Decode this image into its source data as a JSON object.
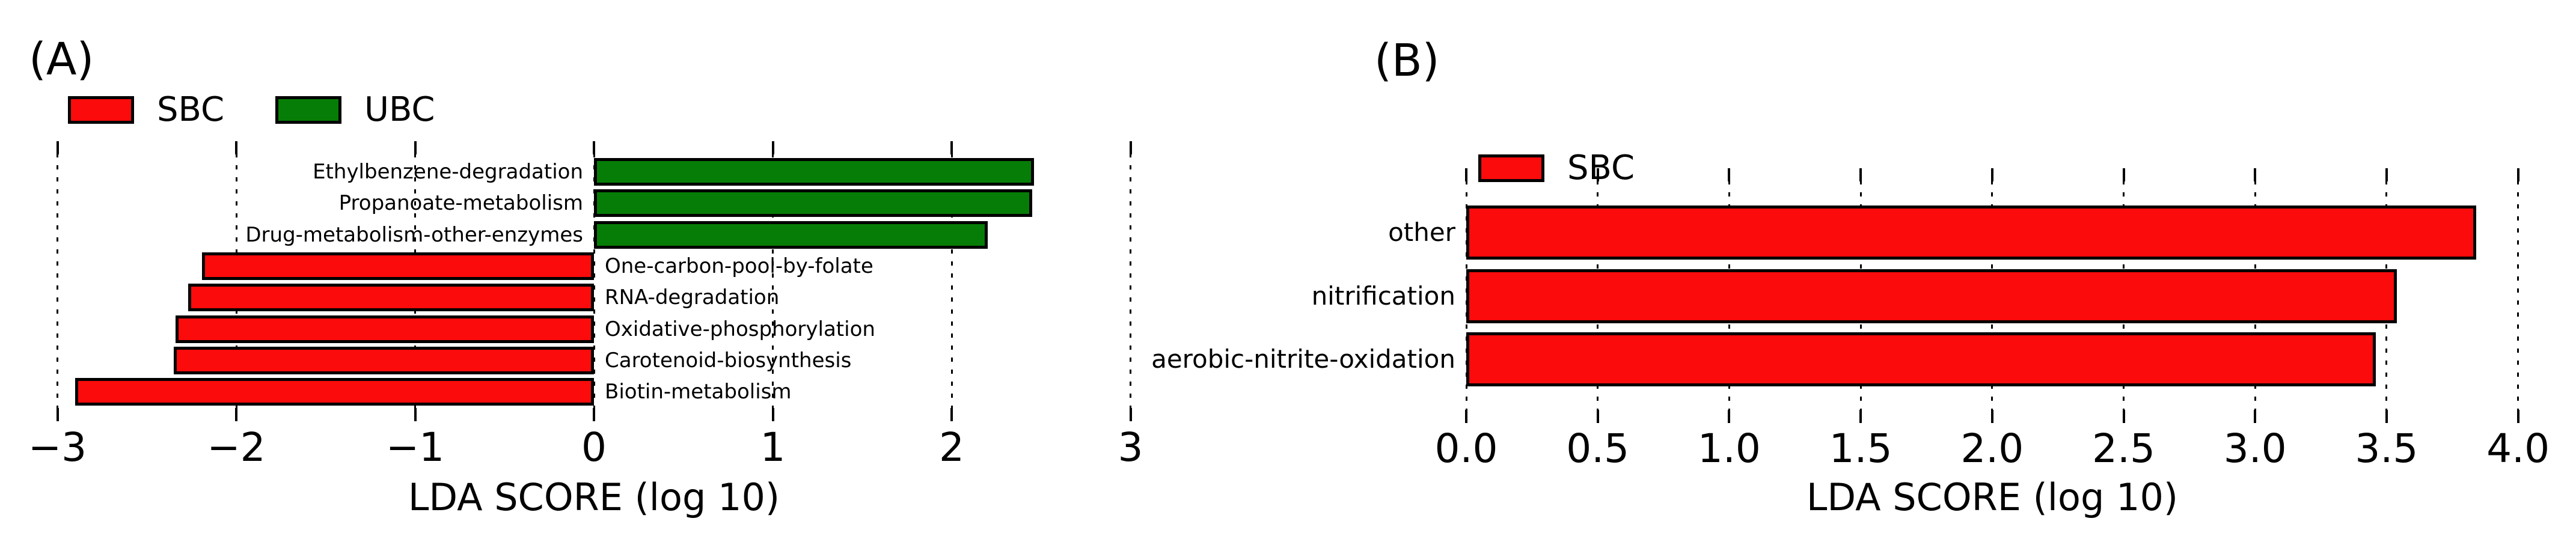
{
  "background_color": "#ffffff",
  "chart_data": [
    {
      "id": "A",
      "type": "bar",
      "orientation": "horizontal",
      "panel_label": "(A)",
      "xlabel": "LDA SCORE (log 10)",
      "xlim": [
        -3,
        3
      ],
      "xticks": [
        -3,
        -2,
        -1,
        0,
        1,
        2,
        3
      ],
      "xtick_labels": [
        "−3",
        "−2",
        "−1",
        "0",
        "1",
        "2",
        "3"
      ],
      "grid": "dotted-vertical",
      "legend_position": "top-left",
      "legend": [
        {
          "label": "SBC",
          "color": "#fb0b0b"
        },
        {
          "label": "UBC",
          "color": "#067d06"
        }
      ],
      "bars": [
        {
          "category": "Ethylbenzene-degradation",
          "group": "UBC",
          "value": 2.46,
          "label_side": "left"
        },
        {
          "category": "Propanoate-metabolism",
          "group": "UBC",
          "value": 2.45,
          "label_side": "left"
        },
        {
          "category": "Drug-metabolism-other-enzymes",
          "group": "UBC",
          "value": 2.2,
          "label_side": "left"
        },
        {
          "category": "One-carbon-pool-by-folate",
          "group": "SBC",
          "value": -2.19,
          "label_side": "right"
        },
        {
          "category": "RNA-degradation",
          "group": "SBC",
          "value": -2.27,
          "label_side": "right"
        },
        {
          "category": "Oxidative-phosphorylation",
          "group": "SBC",
          "value": -2.34,
          "label_side": "right"
        },
        {
          "category": "Carotenoid-biosynthesis",
          "group": "SBC",
          "value": -2.35,
          "label_side": "right"
        },
        {
          "category": "Biotin-metabolism",
          "group": "SBC",
          "value": -2.9,
          "label_side": "right"
        }
      ]
    },
    {
      "id": "B",
      "type": "bar",
      "orientation": "horizontal",
      "panel_label": "(B)",
      "xlabel": "LDA SCORE (log 10)",
      "xlim": [
        0,
        4
      ],
      "xticks": [
        0,
        0.5,
        1,
        1.5,
        2,
        2.5,
        3,
        3.5,
        4
      ],
      "xtick_labels": [
        "0.0",
        "0.5",
        "1.0",
        "1.5",
        "2.0",
        "2.5",
        "3.0",
        "3.5",
        "4.0"
      ],
      "grid": "dotted-vertical",
      "legend_position": "top-left",
      "legend": [
        {
          "label": "SBC",
          "color": "#fb0b0b"
        }
      ],
      "bars": [
        {
          "category": "other",
          "group": "SBC",
          "value": 3.84,
          "label_side": "left"
        },
        {
          "category": "nitrification",
          "group": "SBC",
          "value": 3.54,
          "label_side": "left"
        },
        {
          "category": "aerobic-nitrite-oxidation",
          "group": "SBC",
          "value": 3.46,
          "label_side": "left"
        }
      ]
    }
  ]
}
